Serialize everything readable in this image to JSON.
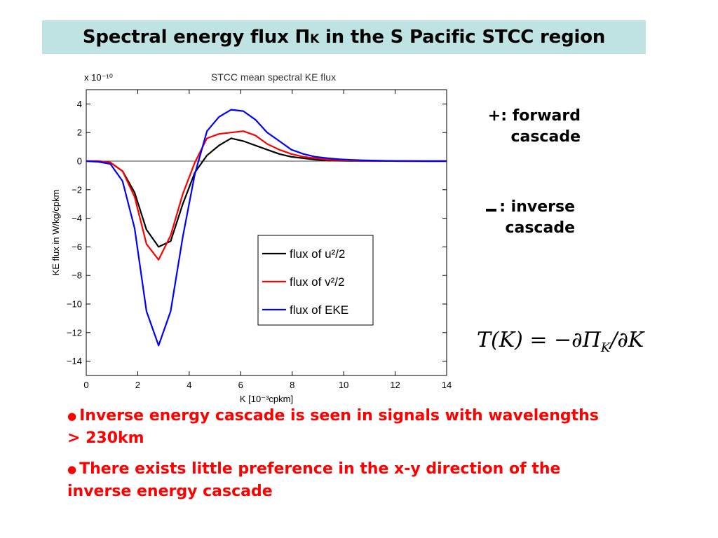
{
  "slide": {
    "title_before": "Spectral energy flux Π",
    "title_sub": "K",
    "title_after": " in the S Pacific STCC region"
  },
  "notes": {
    "forward_line1": "+: forward",
    "forward_line2": "cascade",
    "inverse_line1": ": inverse",
    "inverse_line2": "cascade"
  },
  "formula": {
    "lhs": "T(K) = −∂Π",
    "sub": "K",
    "rhs": "/∂K"
  },
  "bullets": [
    "Inverse energy cascade is seen in signals with wavelengths > 230km",
    "There exists little preference in the x-y direction of the inverse energy cascade"
  ],
  "chart_data": {
    "type": "line",
    "title": "STCC mean spectral KE flux",
    "xlabel": "K [10⁻³cpkm]",
    "ylabel": "KE flux in W/kg/cpkm",
    "y_multiplier": "x 10⁻¹⁰",
    "xlim": [
      0,
      14
    ],
    "ylim": [
      -15,
      5
    ],
    "xticks": [
      0,
      2,
      4,
      6,
      8,
      10,
      12,
      14
    ],
    "yticks": [
      4,
      2,
      0,
      -2,
      -4,
      -6,
      -8,
      -10,
      -12,
      -14
    ],
    "ytick_labels": [
      "4",
      "2",
      "0",
      "−2",
      "−4",
      "−6",
      "−8",
      "−10",
      "−12",
      "−14"
    ],
    "grid": false,
    "legend_position": "lower-right",
    "series": [
      {
        "name": "flux of u²/2",
        "color": "#000000",
        "x": [
          0,
          0.47,
          0.94,
          1.41,
          1.88,
          2.34,
          2.81,
          3.28,
          3.75,
          4.22,
          4.69,
          5.16,
          5.63,
          6.1,
          6.57,
          7.03,
          7.5,
          7.97,
          8.44,
          8.91,
          9.38,
          9.84,
          10.31,
          10.78,
          11.25,
          11.72,
          12.19,
          12.66,
          13.13,
          13.6,
          14
        ],
        "values": [
          0,
          0,
          -0.1,
          -0.7,
          -2.2,
          -4.8,
          -6.0,
          -5.6,
          -3.0,
          -0.8,
          0.4,
          1.1,
          1.6,
          1.4,
          1.1,
          0.8,
          0.5,
          0.3,
          0.2,
          0.1,
          0.05,
          0.03,
          0.02,
          0.01,
          0.01,
          0.01,
          0,
          0,
          0,
          0,
          0
        ]
      },
      {
        "name": "flux of v²/2",
        "color": "#ff0000",
        "x": [
          0,
          0.47,
          0.94,
          1.41,
          1.88,
          2.34,
          2.81,
          3.28,
          3.75,
          4.22,
          4.69,
          5.16,
          5.63,
          6.1,
          6.57,
          7.03,
          7.5,
          7.97,
          8.44,
          8.91,
          9.38,
          9.84,
          10.31,
          10.78,
          11.25,
          11.72,
          12.19,
          12.66,
          13.13,
          13.6,
          14
        ],
        "values": [
          0,
          0,
          -0.1,
          -0.7,
          -2.5,
          -5.8,
          -6.9,
          -5.2,
          -2.3,
          -0.1,
          1.6,
          1.9,
          2.0,
          2.1,
          1.8,
          1.2,
          0.8,
          0.5,
          0.3,
          0.2,
          0.1,
          0.07,
          0.05,
          0.03,
          0.02,
          0.01,
          0.01,
          0,
          0,
          0,
          0
        ]
      },
      {
        "name": "flux of EKE",
        "color": "#0000ff",
        "x": [
          0,
          0.47,
          0.94,
          1.41,
          1.88,
          2.34,
          2.81,
          3.28,
          3.75,
          4.22,
          4.69,
          5.16,
          5.63,
          6.1,
          6.57,
          7.03,
          7.5,
          7.97,
          8.44,
          8.91,
          9.38,
          9.84,
          10.31,
          10.78,
          11.25,
          11.72,
          12.19,
          12.66,
          13.13,
          13.6,
          14
        ],
        "values": [
          0,
          -0.05,
          -0.2,
          -1.4,
          -4.7,
          -10.5,
          -12.9,
          -10.5,
          -5.3,
          -0.9,
          2.1,
          3.1,
          3.6,
          3.5,
          2.9,
          2.0,
          1.4,
          0.8,
          0.5,
          0.3,
          0.2,
          0.13,
          0.09,
          0.06,
          0.04,
          0.02,
          0.01,
          0.01,
          0,
          0,
          0
        ]
      }
    ]
  }
}
